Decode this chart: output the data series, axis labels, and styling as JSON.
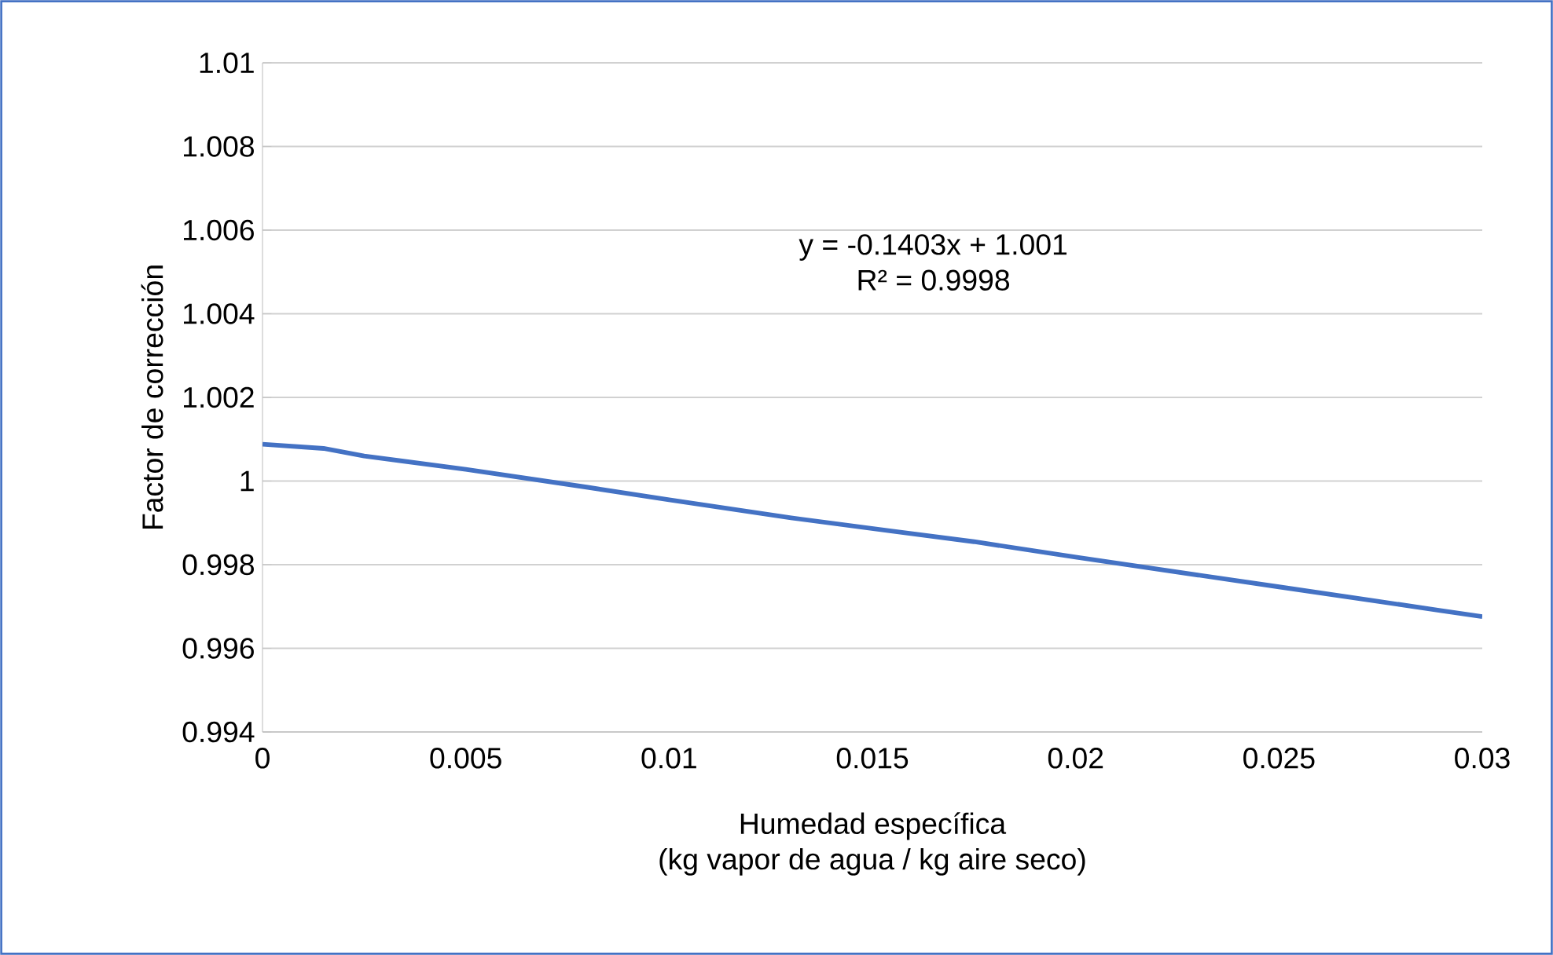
{
  "chart_data": {
    "type": "line",
    "xlabel": "Humedad específica\n(kg vapor de agua / kg aire seco)",
    "ylabel": "Factor de corrección",
    "x": [
      0,
      0.0015,
      0.0025,
      0.005,
      0.008,
      0.01,
      0.013,
      0.0155,
      0.0175,
      0.02,
      0.025,
      0.029,
      0.03
    ],
    "series": [
      {
        "color": "#4472c4",
        "values": [
          1.00088,
          1.00078,
          1.0006,
          1.00028,
          0.99985,
          0.99955,
          0.99912,
          0.9988,
          0.99855,
          0.99818,
          0.99747,
          0.9969,
          0.99676
        ]
      }
    ],
    "xlim": [
      0,
      0.03
    ],
    "ylim": [
      0.994,
      1.01
    ],
    "xticks": [
      0,
      0.005,
      0.01,
      0.015,
      0.02,
      0.025,
      0.03
    ],
    "yticks": [
      0.994,
      0.996,
      0.998,
      1,
      1.002,
      1.004,
      1.006,
      1.008,
      1.01
    ],
    "grid": "y",
    "marker": "none",
    "line_style": "solid",
    "annotations": [
      "y = -0.1403x + 1.001",
      "R² = 0.9998"
    ]
  }
}
